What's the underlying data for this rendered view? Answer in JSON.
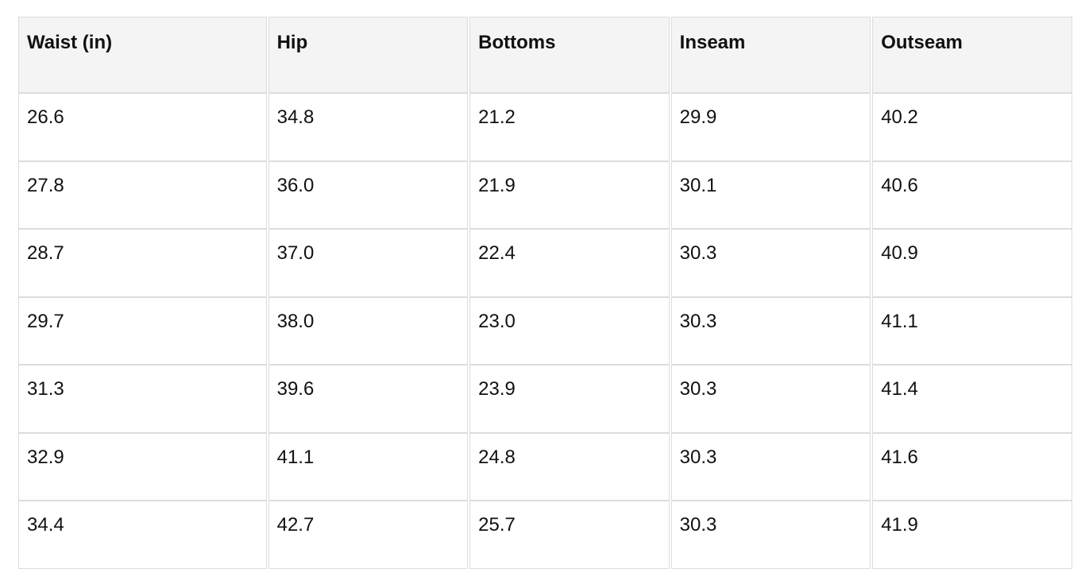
{
  "table": {
    "headers": [
      {
        "id": "waist",
        "label": "Waist (in)"
      },
      {
        "id": "hip",
        "label": "Hip"
      },
      {
        "id": "bottoms",
        "label": "Bottoms"
      },
      {
        "id": "inseam",
        "label": "Inseam"
      },
      {
        "id": "outseam",
        "label": "Outseam"
      }
    ],
    "rows": [
      [
        "26.6",
        "34.8",
        "21.2",
        "29.9",
        "40.2"
      ],
      [
        "27.8",
        "36.0",
        "21.9",
        "30.1",
        "40.6"
      ],
      [
        "28.7",
        "37.0",
        "22.4",
        "30.3",
        "40.9"
      ],
      [
        "29.7",
        "38.0",
        "23.0",
        "30.3",
        "41.1"
      ],
      [
        "31.3",
        "39.6",
        "23.9",
        "30.3",
        "41.4"
      ],
      [
        "32.9",
        "41.1",
        "24.8",
        "30.3",
        "41.6"
      ],
      [
        "34.4",
        "42.7",
        "25.7",
        "30.3",
        "41.9"
      ]
    ]
  },
  "colors": {
    "page_background": "#ffffff",
    "header_background": "#f4f4f4",
    "cell_border": "#dcdcdc",
    "text": "#111111"
  }
}
